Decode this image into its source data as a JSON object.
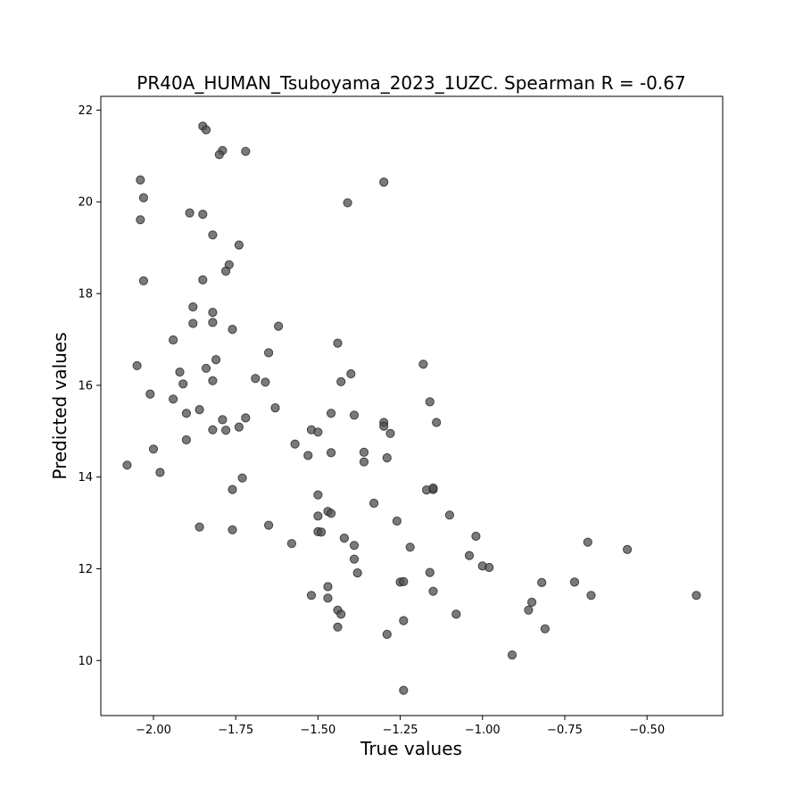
{
  "chart_data": {
    "type": "scatter",
    "title": "PR40A_HUMAN_Tsuboyama_2023_1UZC. Spearman R = -0.67",
    "xlabel": "True values",
    "ylabel": "Predicted values",
    "xlim": [
      -2.16,
      -0.27
    ],
    "ylim": [
      8.8,
      22.3
    ],
    "xticks": [
      -2.0,
      -1.75,
      -1.5,
      -1.25,
      -1.0,
      -0.75,
      -0.5
    ],
    "xtick_labels": [
      "−2.00",
      "−1.75",
      "−1.50",
      "−1.25",
      "−1.00",
      "−0.75",
      "−0.50"
    ],
    "yticks": [
      10,
      12,
      14,
      16,
      18,
      20,
      22
    ],
    "ytick_labels": [
      "10",
      "12",
      "14",
      "16",
      "18",
      "20",
      "22"
    ],
    "grid": false,
    "marker_color": "#4d4d4d",
    "marker_alpha": 0.75,
    "x": [
      -1.85,
      -1.84,
      -1.79,
      -1.8,
      -1.72,
      -2.04,
      -2.03,
      -2.04,
      -1.89,
      -1.85,
      -1.82,
      -1.74,
      -1.77,
      -1.78,
      -1.85,
      -2.03,
      -1.88,
      -1.82,
      -1.88,
      -1.82,
      -1.76,
      -1.94,
      -2.05,
      -1.84,
      -1.81,
      -1.92,
      -1.82,
      -1.91,
      -2.01,
      -1.94,
      -1.86,
      -1.9,
      -1.82,
      -1.79,
      -1.78,
      -1.72,
      -1.74,
      -1.9,
      -2.0,
      -2.08,
      -1.98,
      -1.76,
      -1.73,
      -1.86,
      -1.76,
      -1.3,
      -1.41,
      -1.62,
      -1.65,
      -1.44,
      -1.4,
      -1.69,
      -1.66,
      -1.43,
      -1.63,
      -1.46,
      -1.39,
      -1.52,
      -1.5,
      -1.3,
      -1.3,
      -1.28,
      -1.57,
      -1.46,
      -1.53,
      -1.36,
      -1.36,
      -1.29,
      -1.18,
      -1.16,
      -1.14,
      -1.5,
      -1.33,
      -1.17,
      -1.15,
      -1.15,
      -1.47,
      -1.46,
      -1.5,
      -1.26,
      -1.65,
      -1.1,
      -1.5,
      -1.49,
      -1.58,
      -1.42,
      -1.39,
      -1.22,
      -1.39,
      -1.38,
      -1.02,
      -1.04,
      -1.0,
      -0.98,
      -1.16,
      -1.25,
      -1.24,
      -1.47,
      -1.52,
      -1.47,
      -1.15,
      -1.44,
      -1.43,
      -1.08,
      -1.24,
      -1.44,
      -1.29,
      -1.24,
      -0.91,
      -0.85,
      -0.86,
      -0.82,
      -0.81,
      -0.68,
      -0.72,
      -0.67,
      -0.56,
      -0.35
    ],
    "y": [
      21.65,
      21.57,
      21.12,
      21.03,
      21.1,
      20.48,
      20.09,
      19.61,
      19.76,
      19.73,
      19.28,
      19.06,
      18.63,
      18.49,
      18.3,
      18.28,
      17.71,
      17.59,
      17.35,
      17.37,
      17.22,
      16.99,
      16.43,
      16.37,
      16.56,
      16.29,
      16.1,
      16.03,
      15.81,
      15.7,
      15.47,
      15.39,
      15.03,
      15.25,
      15.02,
      15.29,
      15.09,
      14.81,
      14.61,
      14.26,
      14.1,
      13.73,
      13.98,
      12.91,
      12.85,
      20.43,
      19.98,
      17.29,
      16.71,
      16.92,
      16.25,
      16.15,
      16.07,
      16.08,
      15.51,
      15.39,
      15.35,
      15.03,
      14.98,
      15.19,
      15.11,
      14.95,
      14.72,
      14.53,
      14.47,
      14.54,
      14.33,
      14.42,
      16.46,
      15.64,
      15.19,
      13.61,
      13.43,
      13.72,
      13.73,
      13.76,
      13.25,
      13.21,
      13.15,
      13.04,
      12.95,
      13.17,
      12.81,
      12.8,
      12.55,
      12.67,
      12.51,
      12.47,
      12.21,
      11.91,
      12.71,
      12.29,
      12.06,
      12.03,
      11.92,
      11.71,
      11.72,
      11.61,
      11.42,
      11.36,
      11.51,
      11.1,
      11.01,
      11.01,
      10.87,
      10.73,
      10.57,
      9.35,
      10.12,
      11.27,
      11.1,
      11.7,
      10.69,
      12.58,
      11.71,
      11.42,
      12.42,
      11.42
    ]
  }
}
